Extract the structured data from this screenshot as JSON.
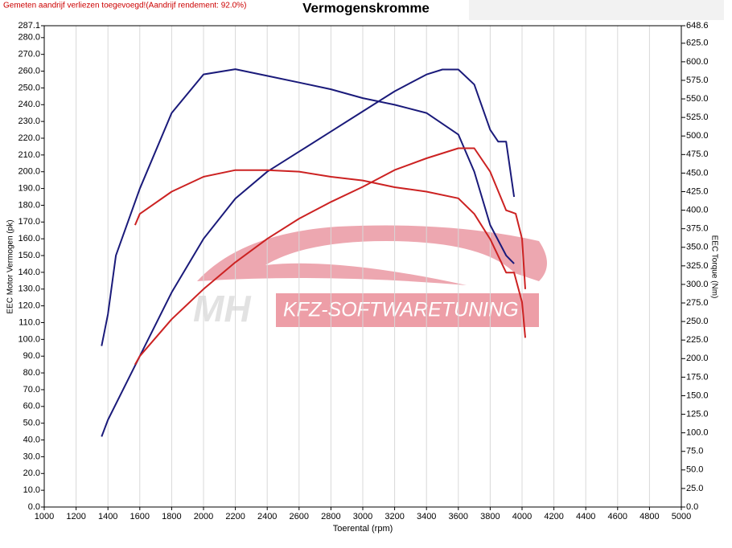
{
  "chart_data": {
    "type": "line",
    "title": "Vermogenskromme",
    "subtitle": "Gemeten aandrijf verliezen toegevoegd!(Aandrijf rendement: 92.0%)",
    "xlabel": "Toerental (rpm)",
    "ylabel": "EEC Motor Vermogen (pk)",
    "y2label": "EEC Torque (Nm)",
    "watermark": [
      "MH",
      "KFZ-SOFTWARETUNING"
    ],
    "grid": "x",
    "xlim": [
      1000,
      5000
    ],
    "xticks": [
      1000,
      1200,
      1400,
      1600,
      1800,
      2000,
      2200,
      2400,
      2600,
      2800,
      3000,
      3200,
      3400,
      3600,
      3800,
      4000,
      4200,
      4400,
      4600,
      4800,
      5000
    ],
    "ylim": [
      0,
      287.1
    ],
    "yticks": [
      {
        "value": 0,
        "label": "0.0"
      },
      {
        "value": 10,
        "label": "10.0"
      },
      {
        "value": 20,
        "label": "20.0"
      },
      {
        "value": 30,
        "label": "30.0"
      },
      {
        "value": 40,
        "label": "40.0"
      },
      {
        "value": 50,
        "label": "50.0"
      },
      {
        "value": 60,
        "label": "60.0"
      },
      {
        "value": 70,
        "label": "70.0"
      },
      {
        "value": 80,
        "label": "80.0"
      },
      {
        "value": 90,
        "label": "90.0"
      },
      {
        "value": 100,
        "label": "100.0"
      },
      {
        "value": 110,
        "label": "110.0"
      },
      {
        "value": 120,
        "label": "120.0"
      },
      {
        "value": 130,
        "label": "130.0"
      },
      {
        "value": 140,
        "label": "140.0"
      },
      {
        "value": 150,
        "label": "150.0"
      },
      {
        "value": 160,
        "label": "160.0"
      },
      {
        "value": 170,
        "label": "170.0"
      },
      {
        "value": 180,
        "label": "180.0"
      },
      {
        "value": 190,
        "label": "190.0"
      },
      {
        "value": 200,
        "label": "200.0"
      },
      {
        "value": 210,
        "label": "210.0"
      },
      {
        "value": 220,
        "label": "220.0"
      },
      {
        "value": 230,
        "label": "230.0"
      },
      {
        "value": 240,
        "label": "240.0"
      },
      {
        "value": 250,
        "label": "250.0"
      },
      {
        "value": 260,
        "label": "260.0"
      },
      {
        "value": 270,
        "label": "270.0"
      },
      {
        "value": 280,
        "label": "280.0"
      },
      287.1
    ],
    "y2lim": [
      0,
      648.6
    ],
    "y2ticks": [
      {
        "value": 0,
        "label": "0.0"
      },
      {
        "value": 25,
        "label": "25.0"
      },
      {
        "value": 50,
        "label": "50.0"
      },
      {
        "value": 75,
        "label": "75.0"
      },
      {
        "value": 100,
        "label": "100.0"
      },
      {
        "value": 125,
        "label": "125.0"
      },
      {
        "value": 150,
        "label": "150.0"
      },
      {
        "value": 175,
        "label": "175.0"
      },
      {
        "value": 200,
        "label": "200.0"
      },
      {
        "value": 225,
        "label": "225.0"
      },
      {
        "value": 250,
        "label": "250.0"
      },
      {
        "value": 275,
        "label": "275.0"
      },
      {
        "value": 300,
        "label": "300.0"
      },
      {
        "value": 325,
        "label": "325.0"
      },
      {
        "value": 350,
        "label": "350.0"
      },
      {
        "value": 375,
        "label": "375.0"
      },
      {
        "value": 400,
        "label": "400.0"
      },
      {
        "value": 425,
        "label": "425.0"
      },
      {
        "value": 450,
        "label": "450.0"
      },
      {
        "value": 475,
        "label": "475.0"
      },
      {
        "value": 500,
        "label": "500.0"
      },
      {
        "value": 525,
        "label": "525.0"
      },
      {
        "value": 550,
        "label": "550.0"
      },
      {
        "value": 575,
        "label": "575.0"
      },
      {
        "value": 600,
        "label": "600.0"
      },
      {
        "value": 625,
        "label": "625.0"
      },
      648.6
    ],
    "series": [
      {
        "color": "#1a1a7a",
        "x": [
          1360,
          1400,
          1600,
          1800,
          2000,
          2200,
          2400,
          2600,
          2800,
          3000,
          3200,
          3400,
          3500,
          3600,
          3700,
          3800,
          3850,
          3900,
          3950
        ],
        "values": [
          42,
          52,
          90,
          128,
          160,
          184,
          200,
          212,
          224,
          236,
          248,
          258,
          261,
          261,
          252,
          225,
          218,
          218,
          185
        ]
      },
      {
        "color": "#1a1a7a",
        "axis": "y2",
        "x": [
          1360,
          1400,
          1450,
          1600,
          1800,
          2000,
          2200,
          2400,
          2600,
          2800,
          3000,
          3200,
          3400,
          3600,
          3700,
          3800,
          3900,
          3950
        ],
        "values": [
          217,
          260,
          339,
          429,
          531,
          583,
          590,
          581,
          572,
          563,
          551,
          542,
          531,
          502,
          452,
          380,
          339,
          328
        ]
      },
      {
        "color": "#cc2222",
        "x": [
          1570,
          1600,
          1800,
          2000,
          2200,
          2400,
          2600,
          2800,
          3000,
          3200,
          3400,
          3600,
          3700,
          3800,
          3900,
          3960,
          4000,
          4020
        ],
        "values": [
          85,
          90,
          112,
          130,
          146,
          160,
          172,
          182,
          191,
          201,
          208,
          214,
          214,
          200,
          177,
          175,
          160,
          130
        ]
      },
      {
        "color": "#cc2222",
        "axis": "y2",
        "x": [
          1570,
          1600,
          1800,
          2000,
          2200,
          2400,
          2600,
          2800,
          3000,
          3200,
          3400,
          3600,
          3700,
          3800,
          3900,
          3950,
          4000,
          4020
        ],
        "values": [
          380,
          395,
          425,
          445,
          454,
          454,
          452,
          445,
          440,
          431,
          425,
          416,
          395,
          361,
          316,
          316,
          276,
          228
        ]
      }
    ]
  }
}
